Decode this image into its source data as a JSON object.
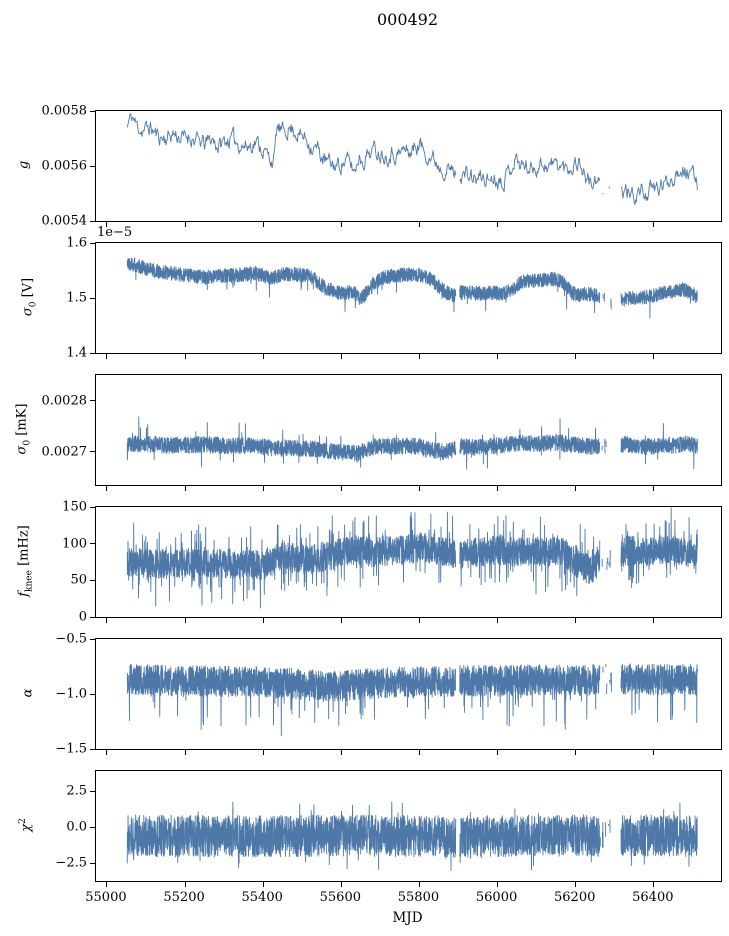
{
  "title": "000492",
  "colors": {
    "line": "#4d78a8",
    "frame": "#000000",
    "background": "#ffffff",
    "text": "#000000"
  },
  "xaxis": {
    "label": "MJD",
    "lim": [
      54972,
      56572
    ],
    "data_range": [
      55052,
      56512
    ],
    "ticks": [
      {
        "v": 55000,
        "label": "55000"
      },
      {
        "v": 55200,
        "label": "55200"
      },
      {
        "v": 55400,
        "label": "55400"
      },
      {
        "v": 55600,
        "label": "55600"
      },
      {
        "v": 55800,
        "label": "55800"
      },
      {
        "v": 56000,
        "label": "56000"
      },
      {
        "v": 56200,
        "label": "56200"
      },
      {
        "v": 56400,
        "label": "56400"
      }
    ]
  },
  "gaps": [
    {
      "from": 55893,
      "to": 55903,
      "density": 0
    },
    {
      "from": 56262,
      "to": 56292,
      "density": 0.3
    },
    {
      "from": 56292,
      "to": 56316,
      "density": 0
    }
  ],
  "chart_data": [
    {
      "id": "g",
      "type": "line",
      "ylabel_html": "<i>g</i>",
      "offset_text": "",
      "ylim": [
        0.0054,
        0.0058
      ],
      "yticks": [
        {
          "v": 0.0058,
          "label": "0.0058"
        },
        {
          "v": 0.0056,
          "label": "0.0056"
        },
        {
          "v": 0.0054,
          "label": "0.0054"
        }
      ],
      "trend": {
        "x": [
          55052,
          55058,
          55065,
          55075,
          55090,
          55110,
          55130,
          55150,
          55170,
          55190,
          55210,
          55230,
          55250,
          55270,
          55285,
          55300,
          55320,
          55340,
          55360,
          55380,
          55400,
          55415,
          55428,
          55435,
          55450,
          55465,
          55480,
          55495,
          55510,
          55525,
          55540,
          55555,
          55570,
          55585,
          55600,
          55615,
          55625,
          55635,
          55645,
          55655,
          55670,
          55685,
          55700,
          55715,
          55730,
          55745,
          55760,
          55775,
          55790,
          55800,
          55810,
          55825,
          55840,
          55855,
          55870,
          55885,
          55900,
          55915,
          55930,
          55945,
          55960,
          55975,
          55990,
          56005,
          56020,
          56035,
          56045,
          56055,
          56070,
          56085,
          56100,
          56115,
          56130,
          56145,
          56160,
          56175,
          56190,
          56205,
          56215,
          56225,
          56240,
          56255,
          56270,
          56285,
          56300,
          56310,
          56320,
          56335,
          56350,
          56365,
          56380,
          56395,
          56410,
          56425,
          56440,
          56455,
          56470,
          56480,
          56490,
          56500,
          56512
        ],
        "y": [
          0.00574,
          0.00577,
          0.00578,
          0.00575,
          0.00573,
          0.00574,
          0.00571,
          0.0057,
          0.00572,
          0.0057,
          0.00571,
          0.00569,
          0.00568,
          0.0057,
          0.00567,
          0.00569,
          0.0057,
          0.00568,
          0.00567,
          0.00569,
          0.00566,
          0.00563,
          0.00562,
          0.00574,
          0.00572,
          0.00574,
          0.00573,
          0.00571,
          0.0057,
          0.00567,
          0.00566,
          0.00562,
          0.00561,
          0.0056,
          0.00561,
          0.00562,
          0.0056,
          0.00558,
          0.00564,
          0.00562,
          0.00565,
          0.00566,
          0.00565,
          0.00564,
          0.00565,
          0.00564,
          0.00566,
          0.00565,
          0.00567,
          0.00568,
          0.00566,
          0.00564,
          0.00562,
          0.0056,
          0.00559,
          0.00558,
          0.00556,
          0.00557,
          0.00556,
          0.00555,
          0.00556,
          0.00555,
          0.00556,
          0.00555,
          0.00556,
          0.0056,
          0.00563,
          0.00561,
          0.0056,
          0.00559,
          0.0056,
          0.00561,
          0.0056,
          0.00561,
          0.0056,
          0.00559,
          0.0056,
          0.00562,
          0.0056,
          0.00556,
          0.00554,
          0.00553,
          0.00552,
          0.00551,
          0.00548,
          0.00549,
          0.00551,
          0.0055,
          0.00549,
          0.00551,
          0.0055,
          0.00551,
          0.00552,
          0.00553,
          0.00555,
          0.00557,
          0.0056,
          0.00559,
          0.00557,
          0.00556,
          0.00554
        ]
      },
      "render": {
        "step": 1.8,
        "noise": 2.5e-05,
        "smooth": 0.6,
        "spike_prob": 0,
        "spike_amp": 0,
        "spike_dir": 0,
        "clamp": [
          0.00546,
          0.00579
        ],
        "seed": 11
      }
    },
    {
      "id": "sigma0_V",
      "type": "line",
      "ylabel_html": "<i>&#963;</i><sub>0</sub> [V]",
      "offset_text": "1e&#8722;5",
      "ylim": [
        1.4,
        1.6
      ],
      "yticks": [
        {
          "v": 1.6,
          "label": "1.6"
        },
        {
          "v": 1.5,
          "label": "1.5"
        },
        {
          "v": 1.4,
          "label": "1.4"
        }
      ],
      "trend": {
        "x": [
          55052,
          55080,
          55120,
          55160,
          55200,
          55250,
          55300,
          55340,
          55380,
          55420,
          55450,
          55480,
          55520,
          55560,
          55600,
          55630,
          55650,
          55665,
          55680,
          55700,
          55730,
          55760,
          55790,
          55810,
          55830,
          55850,
          55870,
          55890,
          55905,
          55930,
          55960,
          55990,
          56010,
          56040,
          56060,
          56090,
          56120,
          56150,
          56170,
          56190,
          56210,
          56230,
          56250,
          56262,
          56292,
          56316,
          56340,
          56360,
          56380,
          56400,
          56430,
          56460,
          56480,
          56500,
          56512
        ],
        "y": [
          1.565,
          1.558,
          1.55,
          1.545,
          1.542,
          1.538,
          1.54,
          1.542,
          1.545,
          1.535,
          1.543,
          1.543,
          1.54,
          1.517,
          1.508,
          1.512,
          1.498,
          1.51,
          1.525,
          1.535,
          1.54,
          1.542,
          1.543,
          1.54,
          1.535,
          1.52,
          1.51,
          1.505,
          1.51,
          1.51,
          1.508,
          1.51,
          1.508,
          1.515,
          1.53,
          1.532,
          1.533,
          1.535,
          1.527,
          1.51,
          1.505,
          1.508,
          1.505,
          1.5,
          1.49,
          1.497,
          1.5,
          1.498,
          1.502,
          1.505,
          1.51,
          1.515,
          1.515,
          1.508,
          1.5
        ]
      },
      "render": {
        "step": 0.4,
        "noise": 0.013,
        "smooth": 0,
        "spike_prob": 0.012,
        "spike_amp": 0.03,
        "spike_dir": -1,
        "clamp": [
          1.455,
          1.585
        ],
        "seed": 22
      }
    },
    {
      "id": "sigma0_mK",
      "type": "line",
      "ylabel_html": "<i>&#963;</i><sub>0</sub> [mK]",
      "offset_text": "",
      "ylim": [
        0.002635,
        0.00285
      ],
      "yticks": [
        {
          "v": 0.0028,
          "label": "0.0028"
        },
        {
          "v": 0.0027,
          "label": "0.0027"
        }
      ],
      "trend": {
        "x": [
          55052,
          55100,
          55150,
          55200,
          55250,
          55300,
          55350,
          55400,
          55430,
          55460,
          55500,
          55540,
          55570,
          55600,
          55620,
          55640,
          55660,
          55690,
          55720,
          55750,
          55780,
          55800,
          55820,
          55840,
          55860,
          55890,
          55910,
          55940,
          55970,
          56000,
          56030,
          56060,
          56090,
          56120,
          56150,
          56180,
          56210,
          56240,
          56270,
          56300,
          56330,
          56360,
          56390,
          56420,
          56450,
          56480,
          56512
        ],
        "y": [
          0.002715,
          0.002715,
          0.002712,
          0.002713,
          0.002714,
          0.002712,
          0.002712,
          0.00271,
          0.002705,
          0.002708,
          0.002706,
          0.002705,
          0.002702,
          0.002698,
          0.0027,
          0.002695,
          0.002705,
          0.00271,
          0.002712,
          0.00271,
          0.002712,
          0.00271,
          0.002705,
          0.002702,
          0.0027,
          0.002705,
          0.00271,
          0.002708,
          0.00271,
          0.002712,
          0.002715,
          0.002718,
          0.002716,
          0.002717,
          0.002718,
          0.002715,
          0.002712,
          0.00271,
          0.002712,
          0.002712,
          0.002715,
          0.002712,
          0.00271,
          0.002713,
          0.002713,
          0.002715,
          0.002712
        ]
      },
      "render": {
        "step": 0.4,
        "noise": 1.6e-05,
        "smooth": 0,
        "spike_prob": 0.02,
        "spike_amp": 4e-05,
        "spike_dir": 0,
        "clamp": [
          0.002652,
          0.002782
        ],
        "seed": 33
      }
    },
    {
      "id": "f_knee",
      "type": "line",
      "ylabel_html": "<i>f</i><sub>knee</sub> [mHz]",
      "offset_text": "",
      "ylim": [
        0,
        150
      ],
      "yticks": [
        {
          "v": 150,
          "label": "150"
        },
        {
          "v": 100,
          "label": "100"
        },
        {
          "v": 50,
          "label": "50"
        },
        {
          "v": 0,
          "label": "0"
        }
      ],
      "trend": {
        "x": [
          55052,
          55100,
          55150,
          55200,
          55250,
          55300,
          55350,
          55400,
          55430,
          55450,
          55480,
          55520,
          55560,
          55600,
          55640,
          55680,
          55720,
          55760,
          55800,
          55840,
          55870,
          55890,
          55905,
          55940,
          55970,
          56000,
          56030,
          56060,
          56090,
          56120,
          56150,
          56180,
          56200,
          56220,
          56240,
          56262,
          56292,
          56316,
          56340,
          56360,
          56390,
          56420,
          56450,
          56480,
          56512
        ],
        "y": [
          75,
          73,
          72,
          74,
          72,
          73,
          72,
          70,
          78,
          85,
          80,
          78,
          82,
          88,
          92,
          88,
          90,
          92,
          95,
          92,
          88,
          85,
          85,
          88,
          90,
          92,
          90,
          88,
          90,
          88,
          90,
          85,
          75,
          68,
          65,
          75,
          85,
          88,
          92,
          88,
          90,
          92,
          90,
          88,
          85
        ]
      },
      "render": {
        "step": 0.4,
        "noise": 20,
        "smooth": 0,
        "spike_prob": 0.1,
        "spike_amp": 42,
        "spike_dir": 0,
        "clamp": [
          8,
          149
        ],
        "seed": 44
      }
    },
    {
      "id": "alpha",
      "type": "line",
      "ylabel_html": "<i>&#945;</i>",
      "offset_text": "",
      "ylim": [
        -1.5,
        -0.5
      ],
      "yticks": [
        {
          "v": -0.5,
          "label": "&#8722;0.5"
        },
        {
          "v": -1.0,
          "label": "&#8722;1.0"
        },
        {
          "v": -1.5,
          "label": "&#8722;1.5"
        }
      ],
      "trend": {
        "x": [
          55052,
          55200,
          55400,
          55500,
          55560,
          55620,
          55700,
          55800,
          55900,
          56000,
          56100,
          56200,
          56300,
          56400,
          56512
        ],
        "y": [
          -0.87,
          -0.88,
          -0.89,
          -0.91,
          -0.93,
          -0.92,
          -0.9,
          -0.89,
          -0.88,
          -0.88,
          -0.87,
          -0.88,
          -0.86,
          -0.87,
          -0.87
        ]
      },
      "render": {
        "step": 0.4,
        "noise": 0.14,
        "smooth": 0,
        "spike_prob": 0.03,
        "spike_amp": 0.35,
        "spike_dir": -1,
        "clamp": [
          -1.53,
          -0.6
        ],
        "seed": 55
      }
    },
    {
      "id": "chi2",
      "type": "line",
      "ylabel_html": "<i>&#967;</i><sup>2</sup>",
      "offset_text": "",
      "ylim": [
        -3.75,
        3.9
      ],
      "yticks": [
        {
          "v": 2.5,
          "label": "2.5"
        },
        {
          "v": 0.0,
          "label": "0.0"
        },
        {
          "v": -2.5,
          "label": "&#8722;2.5"
        }
      ],
      "trend": {
        "x": [
          55052,
          55300,
          55600,
          55900,
          56200,
          56512
        ],
        "y": [
          -0.6,
          -0.65,
          -0.6,
          -0.65,
          -0.6,
          -0.6
        ]
      },
      "render": {
        "step": 0.4,
        "noise": 1.45,
        "smooth": 0,
        "spike_prob": 0.04,
        "spike_amp": 1.1,
        "spike_dir": 0,
        "clamp": [
          -3.35,
          2.6
        ],
        "seed": 66
      }
    }
  ]
}
